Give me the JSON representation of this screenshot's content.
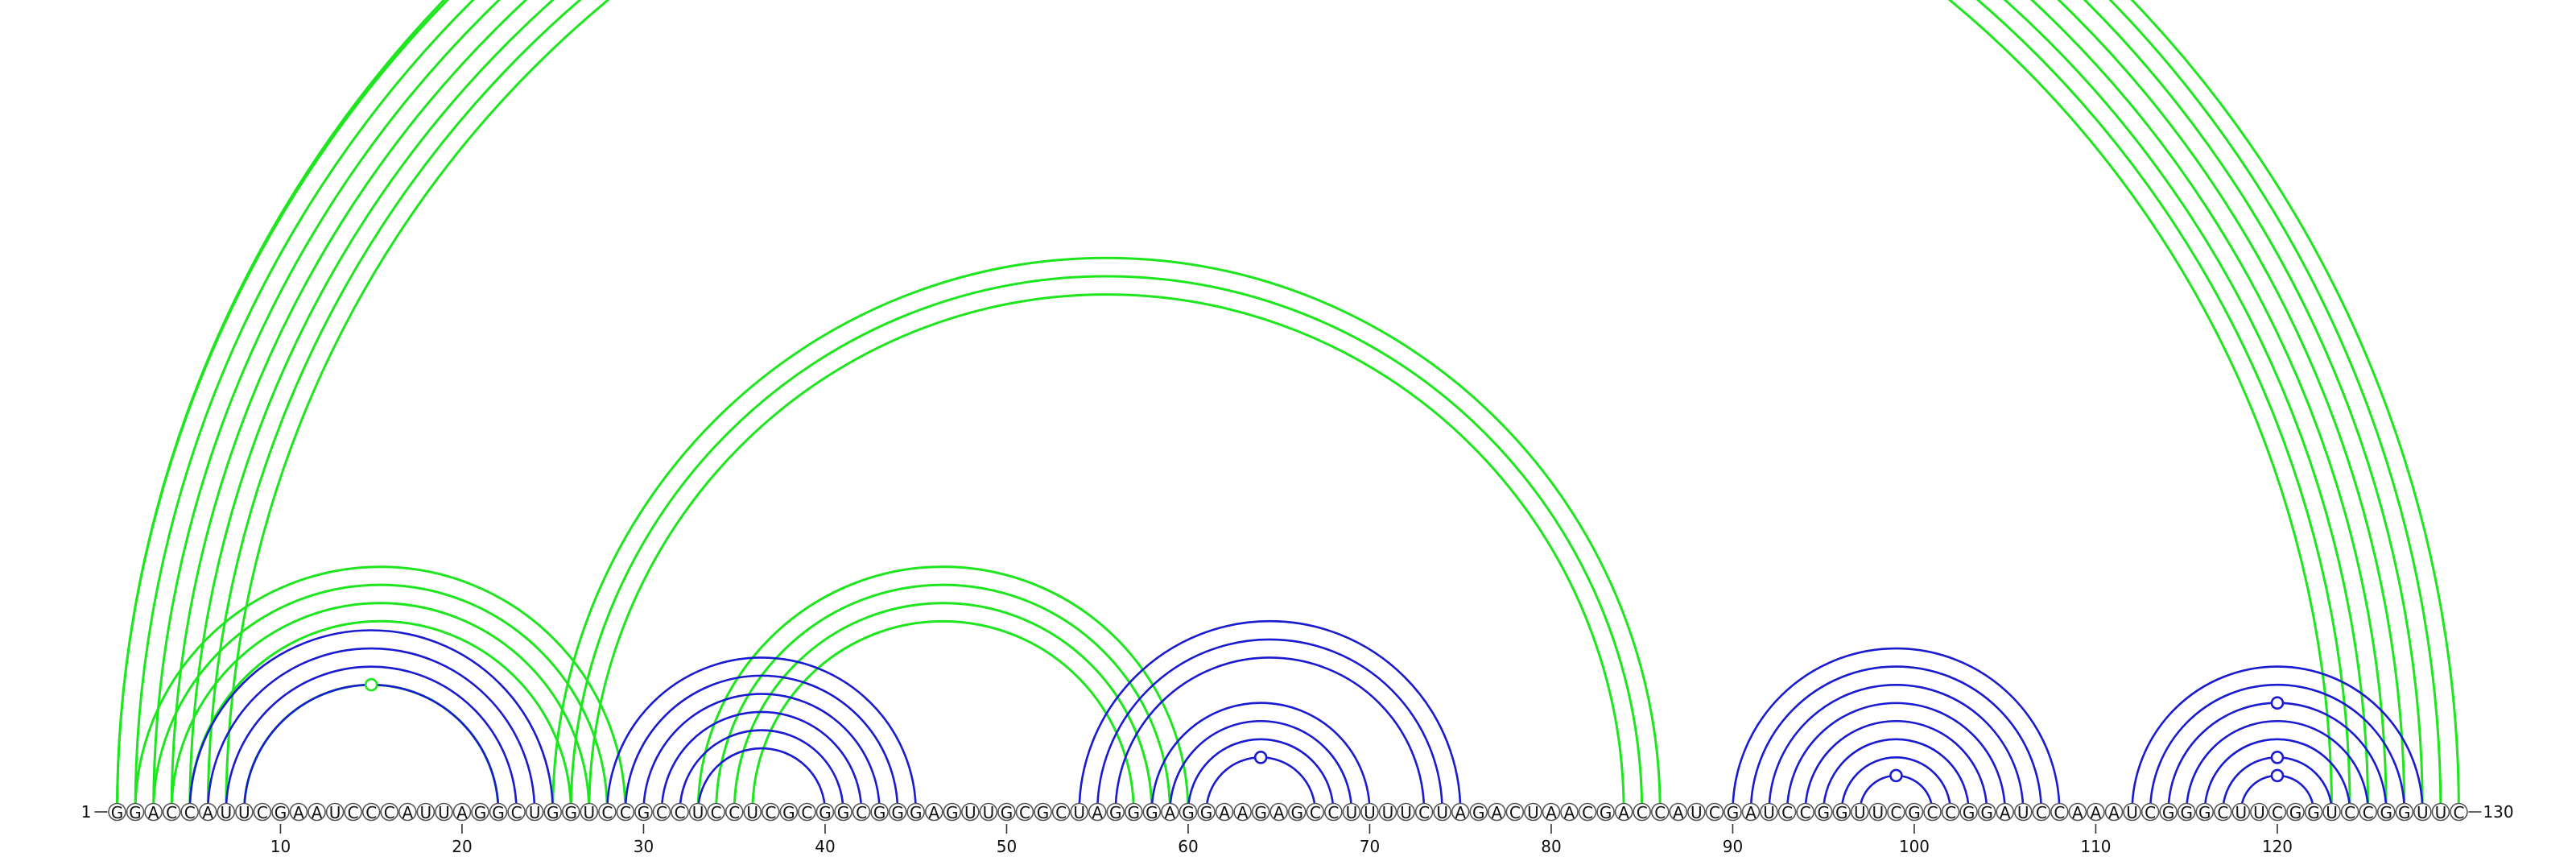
{
  "sequence": "GGACCAUUCGAAUCCCAUUAGGCUGGUCCGCCUCCUCGCGGCGGGAGUUGCGCUAGGGAGGAAGAGCCUUUUCUAGACUAACGACCAUCGAUCCGGUUCGCCGGAUCCAAAUCGGGCUUCGGUCCGGUUC",
  "start_label": "1",
  "end_label": "130",
  "ticks": [
    10,
    20,
    30,
    40,
    50,
    60,
    70,
    80,
    90,
    100,
    110,
    120
  ],
  "colors": {
    "green": "#1ee61e",
    "blue": "#1a1ad0"
  },
  "green_pairs": [
    [
      1,
      130
    ],
    [
      1,
      129
    ],
    [
      2,
      128
    ],
    [
      3,
      127
    ],
    [
      4,
      126
    ],
    [
      5,
      125
    ],
    [
      6,
      124
    ],
    [
      7,
      123
    ],
    [
      2,
      29
    ],
    [
      3,
      28
    ],
    [
      4,
      27
    ],
    [
      5,
      26
    ],
    [
      8,
      22
    ],
    [
      25,
      86
    ],
    [
      26,
      85
    ],
    [
      27,
      84
    ],
    [
      33,
      60
    ],
    [
      34,
      59
    ],
    [
      35,
      58
    ],
    [
      36,
      57
    ]
  ],
  "blue_pairs": [
    [
      5,
      25
    ],
    [
      6,
      24
    ],
    [
      7,
      23
    ],
    [
      8,
      22
    ],
    [
      28,
      45
    ],
    [
      29,
      44
    ],
    [
      30,
      43
    ],
    [
      31,
      42
    ],
    [
      32,
      41
    ],
    [
      33,
      40
    ],
    [
      54,
      75
    ],
    [
      55,
      74
    ],
    [
      56,
      73
    ],
    [
      58,
      70
    ],
    [
      59,
      69
    ],
    [
      60,
      68
    ],
    [
      61,
      67
    ],
    [
      90,
      108
    ],
    [
      91,
      107
    ],
    [
      92,
      106
    ],
    [
      93,
      105
    ],
    [
      94,
      104
    ],
    [
      95,
      103
    ],
    [
      96,
      102
    ],
    [
      97,
      101
    ],
    [
      112,
      128
    ],
    [
      113,
      127
    ],
    [
      114,
      126
    ],
    [
      115,
      125
    ],
    [
      116,
      124
    ],
    [
      117,
      123
    ],
    [
      118,
      122
    ]
  ],
  "green_markers": [
    [
      1,
      130
    ],
    [
      8,
      22
    ]
  ],
  "blue_markers": [
    [
      61,
      67
    ],
    [
      97,
      101
    ],
    [
      114,
      126
    ],
    [
      117,
      123
    ],
    [
      118,
      122
    ]
  ]
}
